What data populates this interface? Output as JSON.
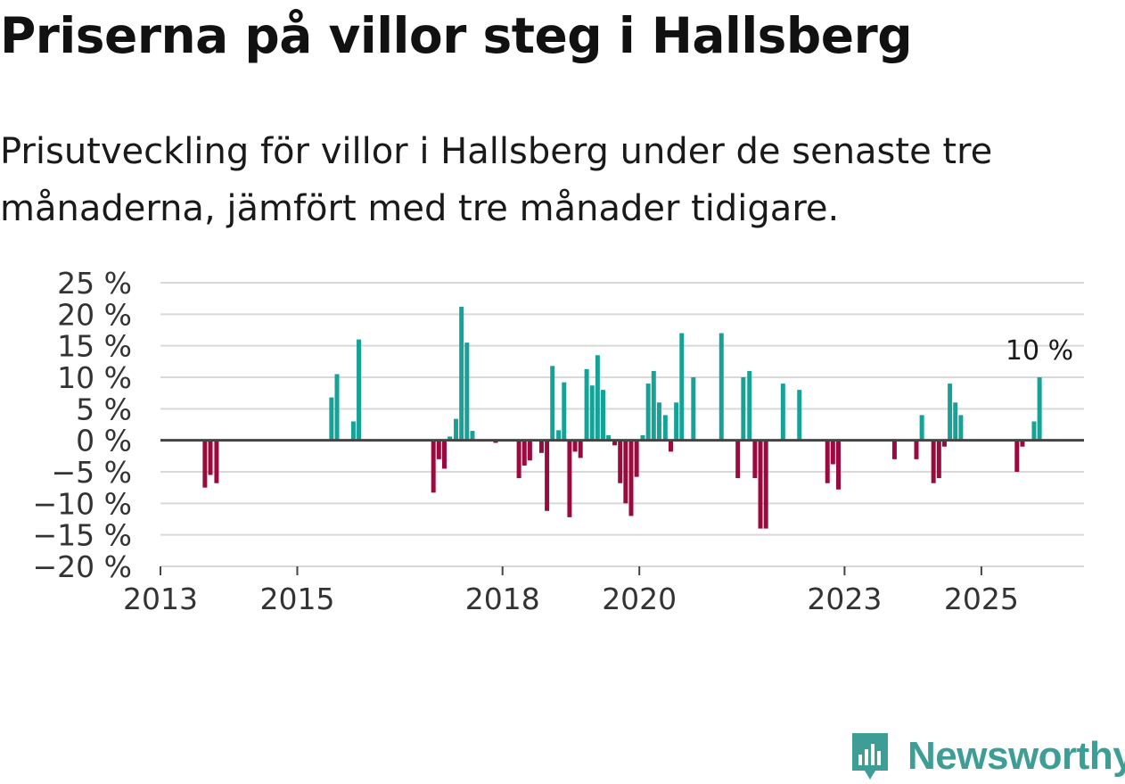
{
  "title": "Priserna på villor steg i Hallsberg",
  "subtitle": "Prisutveckling för villor i Hallsberg under de senaste tre månaderna, jämfört med tre månader tidigare.",
  "brand": {
    "name": "Newsworthy",
    "color": "#3e9e96",
    "icon": "newsworthy-logo-icon"
  },
  "colors": {
    "positive": "#17a297",
    "negative": "#9b0a3e",
    "grid": "#d9d9d9",
    "zero": "#444444"
  },
  "chart_data": {
    "type": "bar",
    "title": "Priserna på villor steg i Hallsberg",
    "xlabel": "",
    "ylabel": "",
    "ylim": [
      -20,
      25
    ],
    "yticks": [
      25,
      20,
      15,
      10,
      5,
      0,
      -5,
      -10,
      -15,
      -20
    ],
    "ytick_labels": [
      "25 %",
      "20 %",
      "15 %",
      "10 %",
      "5 %",
      "0 %",
      "−5 %",
      "−10 %",
      "−15 %",
      "−20 %"
    ],
    "xlim": [
      2013,
      2026.5
    ],
    "xticks": [
      2013,
      2015,
      2018,
      2020,
      2023,
      2025
    ],
    "xtick_labels": [
      "2013",
      "2015",
      "2018",
      "2020",
      "2023",
      "2025"
    ],
    "grid": true,
    "bar_width_years": 0.065,
    "end_label": "10 %",
    "series": [
      {
        "name": "Prisutveckling",
        "points": [
          {
            "x": 2013.65,
            "y": -7.5
          },
          {
            "x": 2013.73,
            "y": -5.5
          },
          {
            "x": 2013.82,
            "y": -6.8
          },
          {
            "x": 2015.5,
            "y": 6.8
          },
          {
            "x": 2015.58,
            "y": 10.5
          },
          {
            "x": 2015.82,
            "y": 3.0
          },
          {
            "x": 2015.9,
            "y": 16.0
          },
          {
            "x": 2016.99,
            "y": -8.3
          },
          {
            "x": 2017.07,
            "y": -3.0
          },
          {
            "x": 2017.15,
            "y": -4.5
          },
          {
            "x": 2017.23,
            "y": 0.6
          },
          {
            "x": 2017.32,
            "y": 3.4
          },
          {
            "x": 2017.4,
            "y": 21.2
          },
          {
            "x": 2017.48,
            "y": 15.5
          },
          {
            "x": 2017.56,
            "y": 1.5
          },
          {
            "x": 2017.9,
            "y": -0.4
          },
          {
            "x": 2018.24,
            "y": -6.0
          },
          {
            "x": 2018.32,
            "y": -4.0
          },
          {
            "x": 2018.4,
            "y": -3.2
          },
          {
            "x": 2018.57,
            "y": -2.0
          },
          {
            "x": 2018.65,
            "y": -11.2
          },
          {
            "x": 2018.73,
            "y": 11.8
          },
          {
            "x": 2018.82,
            "y": 1.6
          },
          {
            "x": 2018.9,
            "y": 9.2
          },
          {
            "x": 2018.98,
            "y": -12.2
          },
          {
            "x": 2019.06,
            "y": -1.8
          },
          {
            "x": 2019.14,
            "y": -2.8
          },
          {
            "x": 2019.23,
            "y": 11.3
          },
          {
            "x": 2019.31,
            "y": 8.7
          },
          {
            "x": 2019.39,
            "y": 13.5
          },
          {
            "x": 2019.47,
            "y": 8.0
          },
          {
            "x": 2019.55,
            "y": 0.8
          },
          {
            "x": 2019.64,
            "y": -0.8
          },
          {
            "x": 2019.72,
            "y": -6.8
          },
          {
            "x": 2019.8,
            "y": -10.0
          },
          {
            "x": 2019.88,
            "y": -12.0
          },
          {
            "x": 2019.96,
            "y": -5.8
          },
          {
            "x": 2020.05,
            "y": 0.8
          },
          {
            "x": 2020.13,
            "y": 9.0
          },
          {
            "x": 2020.21,
            "y": 11.0
          },
          {
            "x": 2020.29,
            "y": 6.0
          },
          {
            "x": 2020.38,
            "y": 4.0
          },
          {
            "x": 2020.46,
            "y": -1.8
          },
          {
            "x": 2020.54,
            "y": 6.0
          },
          {
            "x": 2020.62,
            "y": 17.0
          },
          {
            "x": 2020.79,
            "y": 10.0
          },
          {
            "x": 2021.2,
            "y": 17.0
          },
          {
            "x": 2021.44,
            "y": -6.0
          },
          {
            "x": 2021.52,
            "y": 10.0
          },
          {
            "x": 2021.61,
            "y": 11.0
          },
          {
            "x": 2021.69,
            "y": -6.0
          },
          {
            "x": 2021.77,
            "y": -14.0
          },
          {
            "x": 2021.85,
            "y": -14.0
          },
          {
            "x": 2022.1,
            "y": 9.0
          },
          {
            "x": 2022.34,
            "y": 8.0
          },
          {
            "x": 2022.75,
            "y": -6.8
          },
          {
            "x": 2022.83,
            "y": -3.8
          },
          {
            "x": 2022.91,
            "y": -7.8
          },
          {
            "x": 2023.73,
            "y": -3.0
          },
          {
            "x": 2024.05,
            "y": -3.0
          },
          {
            "x": 2024.13,
            "y": 4.0
          },
          {
            "x": 2024.3,
            "y": -6.8
          },
          {
            "x": 2024.38,
            "y": -6.0
          },
          {
            "x": 2024.46,
            "y": -1.0
          },
          {
            "x": 2024.54,
            "y": 9.0
          },
          {
            "x": 2024.62,
            "y": 6.0
          },
          {
            "x": 2024.7,
            "y": 4.0
          },
          {
            "x": 2025.52,
            "y": -5.0
          },
          {
            "x": 2025.6,
            "y": -1.0
          },
          {
            "x": 2025.77,
            "y": 3.0
          },
          {
            "x": 2025.85,
            "y": 10.0
          }
        ]
      }
    ]
  }
}
